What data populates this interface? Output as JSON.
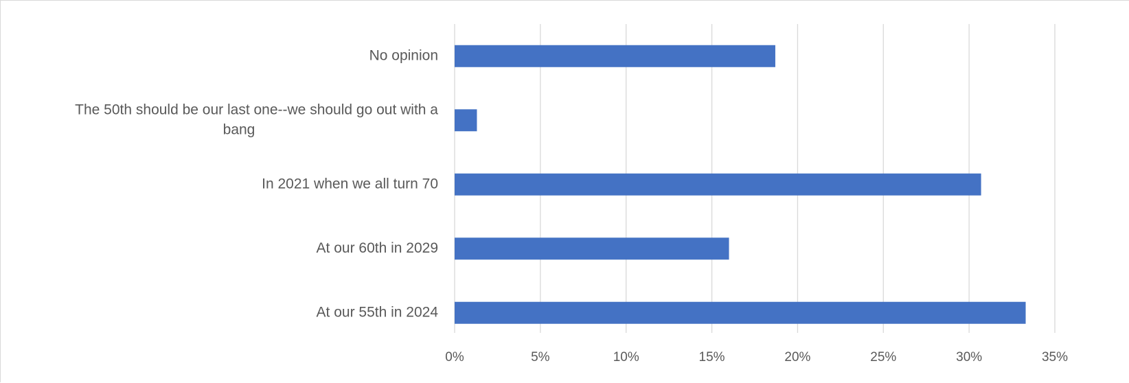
{
  "chart_data": {
    "type": "bar",
    "orientation": "horizontal",
    "categories": [
      "No opinion",
      "The 50th should be our last one--we should go out with a bang",
      "In 2021 when we all turn 70",
      "At our 60th in 2029",
      "At our 55th in 2024"
    ],
    "category_label_lines": [
      [
        "No opinion"
      ],
      [
        "The 50th should be our last one--we should go out with a",
        "bang"
      ],
      [
        "In 2021 when we all turn 70"
      ],
      [
        "At our 60th in 2029"
      ],
      [
        "At our 55th in 2024"
      ]
    ],
    "values": [
      18.7,
      1.3,
      30.7,
      16.0,
      33.3
    ],
    "value_format": "percent",
    "xlim": [
      0,
      35
    ],
    "xticks": [
      0,
      5,
      10,
      15,
      20,
      25,
      30,
      35
    ],
    "xtick_labels": [
      "0%",
      "5%",
      "10%",
      "15%",
      "20%",
      "25%",
      "30%",
      "35%"
    ],
    "title": "",
    "xlabel": "",
    "ylabel": "",
    "grid": true,
    "legend": "none",
    "bar_color": "#4472c4",
    "grid_color": "#d9d9d9",
    "text_color": "#595959"
  }
}
